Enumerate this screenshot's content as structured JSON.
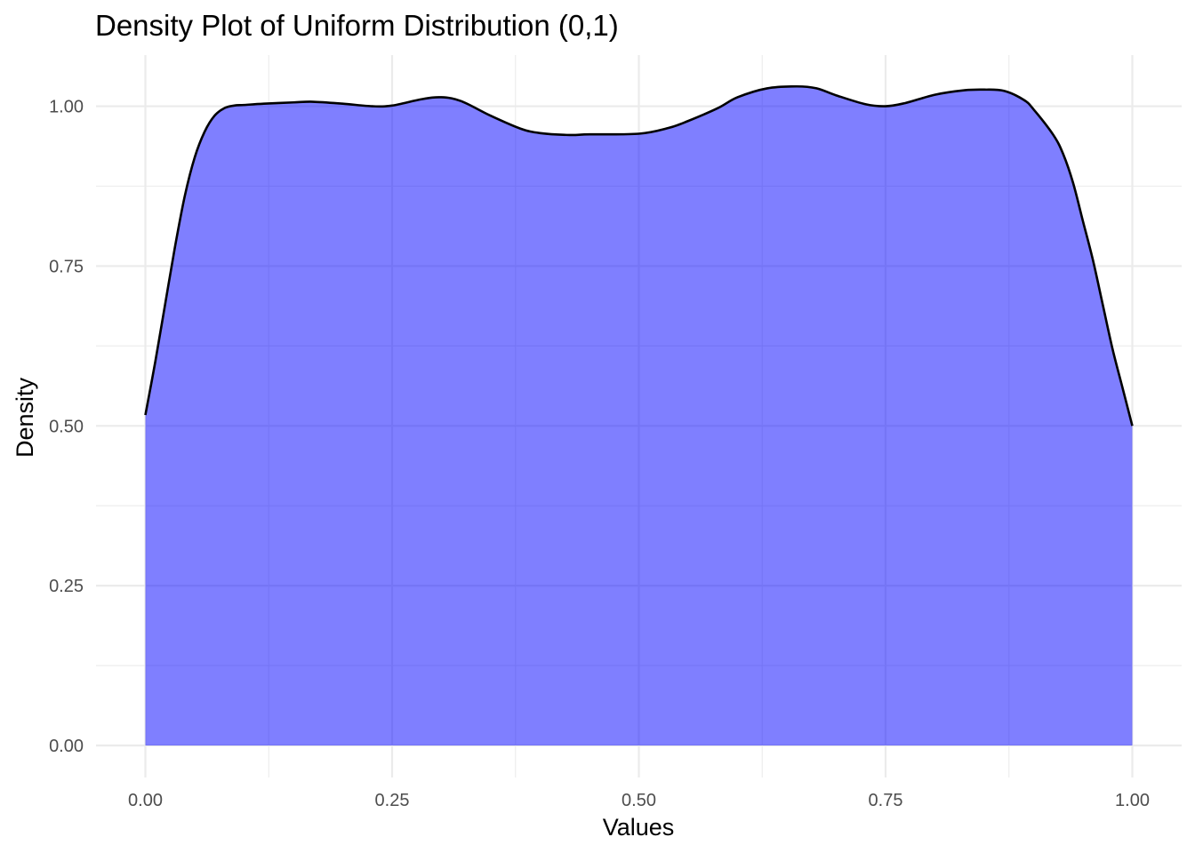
{
  "chart_data": {
    "type": "area",
    "title": "Density Plot of Uniform Distribution (0,1)",
    "xlabel": "Values",
    "ylabel": "Density",
    "xlim": [
      -0.05,
      1.05
    ],
    "ylim": [
      -0.05,
      1.08
    ],
    "x_ticks": [
      0.0,
      0.25,
      0.5,
      0.75,
      1.0
    ],
    "x_tick_labels": [
      "0.00",
      "0.25",
      "0.50",
      "0.75",
      "1.00"
    ],
    "y_ticks": [
      0.0,
      0.25,
      0.5,
      0.75,
      1.0
    ],
    "y_tick_labels": [
      "0.00",
      "0.25",
      "0.50",
      "0.75",
      "1.00"
    ],
    "x_minor_ticks": [
      0.125,
      0.375,
      0.625,
      0.875
    ],
    "y_minor_ticks": [
      0.125,
      0.375,
      0.625,
      0.875
    ],
    "grid": true,
    "fill_color": "#0000ff",
    "fill_opacity": 0.5,
    "line_color": "#000000",
    "series": [
      {
        "x": [
          0.0,
          0.01,
          0.02,
          0.03,
          0.04,
          0.05,
          0.06,
          0.07,
          0.08,
          0.09,
          0.1,
          0.12,
          0.15,
          0.17,
          0.2,
          0.23,
          0.25,
          0.28,
          0.3,
          0.32,
          0.35,
          0.38,
          0.4,
          0.43,
          0.45,
          0.5,
          0.53,
          0.55,
          0.58,
          0.6,
          0.63,
          0.66,
          0.68,
          0.7,
          0.73,
          0.75,
          0.77,
          0.8,
          0.83,
          0.85,
          0.87,
          0.89,
          0.9,
          0.92,
          0.93,
          0.94,
          0.95,
          0.96,
          0.97,
          0.98,
          0.99,
          1.0
        ],
        "y": [
          0.517,
          0.6,
          0.69,
          0.78,
          0.86,
          0.92,
          0.96,
          0.985,
          0.997,
          1.001,
          1.002,
          1.004,
          1.006,
          1.007,
          1.004,
          1.0,
          1.001,
          1.011,
          1.014,
          1.008,
          0.985,
          0.965,
          0.958,
          0.955,
          0.956,
          0.957,
          0.966,
          0.977,
          0.997,
          1.014,
          1.028,
          1.031,
          1.028,
          1.017,
          1.003,
          1.0,
          1.005,
          1.018,
          1.025,
          1.026,
          1.024,
          1.01,
          0.995,
          0.955,
          0.925,
          0.88,
          0.82,
          0.76,
          0.69,
          0.62,
          0.56,
          0.5
        ]
      }
    ]
  }
}
